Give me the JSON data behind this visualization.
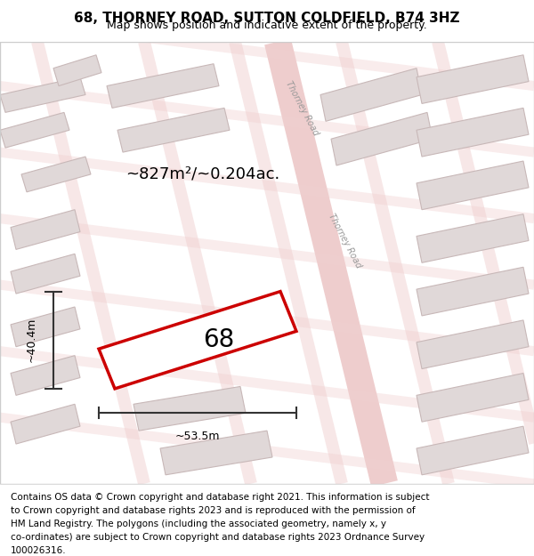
{
  "title": "68, THORNEY ROAD, SUTTON COLDFIELD, B74 3HZ",
  "subtitle": "Map shows position and indicative extent of the property.",
  "footer": "Contains OS data © Crown copyright and database right 2021. This information is subject to Crown copyright and database rights 2023 and is reproduced with the permission of HM Land Registry. The polygons (including the associated geometry, namely x, y co-ordinates) are subject to Crown copyright and database rights 2023 Ordnance Survey 100026316.",
  "area_label": "~827m²/~0.204ac.",
  "width_label": "~53.5m",
  "height_label": "~40.4m",
  "property_number": "68",
  "bg_color": "#f5f0f0",
  "map_bg": "#f7f2f2",
  "road_color": "#e8c8c8",
  "building_fill": "#e0d8d8",
  "building_edge": "#d0b8b8",
  "property_fill": "white",
  "property_edge": "#cc0000",
  "road_label_color": "#888888",
  "dim_color": "#333333",
  "title_fontsize": 11,
  "subtitle_fontsize": 9,
  "footer_fontsize": 7.5,
  "map_extent": [
    0,
    1,
    0,
    1
  ]
}
